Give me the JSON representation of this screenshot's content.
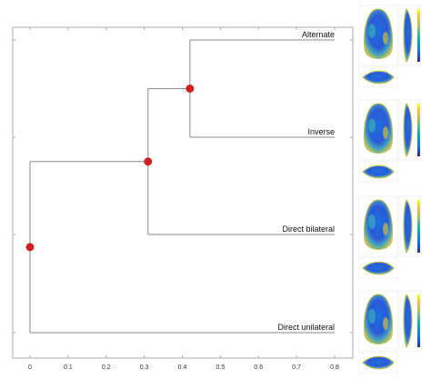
{
  "chart_data": {
    "type": "dendrogram",
    "title": "",
    "xlabel": "",
    "ylabel": "",
    "xlim": [
      0,
      0.8
    ],
    "x_ticks": [
      0,
      0.1,
      0.2,
      0.3,
      0.4,
      0.5,
      0.6,
      0.7,
      0.8
    ],
    "x_tick_labels": [
      "0",
      "0.1",
      "0.2",
      "0.3",
      "0.4",
      "0.5",
      "0.6",
      "0.7",
      "0.8"
    ],
    "leaves": [
      "Alternate",
      "Inverse",
      "Direct bilateral",
      "Direct unilateral"
    ],
    "leaf_extent": 0.8,
    "merges": [
      {
        "left": "Alternate",
        "right": "Inverse",
        "height": 0.42
      },
      {
        "left": "Alternate+Inverse",
        "right": "Direct bilateral",
        "height": 0.31
      },
      {
        "left": "Alternate+Inverse+Direct bilateral",
        "right": "Direct unilateral",
        "height": 0.0
      }
    ],
    "node_color": "#d11f1f",
    "branch_color": "#8a8a8a",
    "grid": false,
    "side_panels": {
      "description": "3D shape color maps per leaf",
      "colormap": "parula",
      "colorbar_colors": [
        "#352a87",
        "#0f5cdd",
        "#1481d6",
        "#06a4ca",
        "#2eb7a4",
        "#87bf77",
        "#d1bb59",
        "#fec832",
        "#f9fb0e"
      ]
    }
  }
}
